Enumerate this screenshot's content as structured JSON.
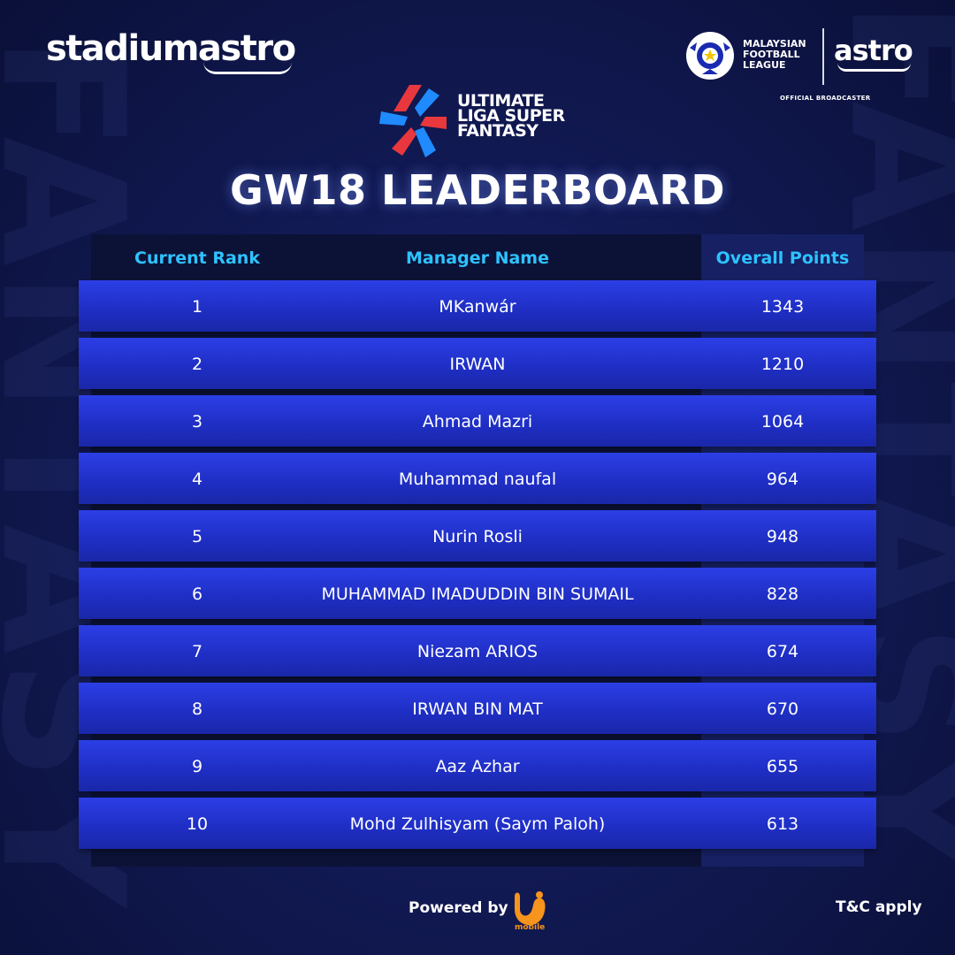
{
  "brand": {
    "stadium": "stadium",
    "astro_word": "astro",
    "astro": "astro"
  },
  "league": {
    "line1": "MALAYSIAN",
    "line2": "FOOTBALL",
    "line3": "LEAGUE",
    "broadcaster": "OFFICIAL BROADCASTER"
  },
  "game": {
    "line1": "ULTIMATE",
    "line2": "LIGA SUPER",
    "line3": "FANTASY"
  },
  "title": "GW18 LEADERBOARD",
  "table": {
    "headers": {
      "rank": "Current Rank",
      "name": "Manager Name",
      "points": "Overall Points"
    },
    "rows": [
      {
        "rank": "1",
        "name": "MKanwár",
        "points": "1343"
      },
      {
        "rank": "2",
        "name": "IRWAN",
        "points": "1210"
      },
      {
        "rank": "3",
        "name": "Ahmad Mazri",
        "points": "1064"
      },
      {
        "rank": "4",
        "name": "Muhammad naufal",
        "points": "964"
      },
      {
        "rank": "5",
        "name": "Nurin Rosli",
        "points": "948"
      },
      {
        "rank": "6",
        "name": "MUHAMMAD IMADUDDIN BIN SUMAIL",
        "points": "828"
      },
      {
        "rank": "7",
        "name": "Niezam ARIOS",
        "points": "674"
      },
      {
        "rank": "8",
        "name": "IRWAN BIN MAT",
        "points": "670"
      },
      {
        "rank": "9",
        "name": "Aaz Azhar",
        "points": "655"
      },
      {
        "rank": "10",
        "name": "Mohd Zulhisyam (Saym Paloh)",
        "points": "613"
      }
    ]
  },
  "footer": {
    "powered_by": "Powered by",
    "sponsor_label": "mobile",
    "tnc": "T&C apply"
  },
  "colors": {
    "header_text": "#2ec2ff",
    "row_blue": "#2c3fe6",
    "accent_red": "#e8383d",
    "accent_blue": "#1f8bff",
    "sponsor_orange": "#f7941d"
  },
  "icons": {
    "league_badge": "mfl-ball-badge-icon",
    "game_logo": "ulsf-star-logo-icon",
    "sponsor_logo": "u-mobile-logo-icon"
  }
}
